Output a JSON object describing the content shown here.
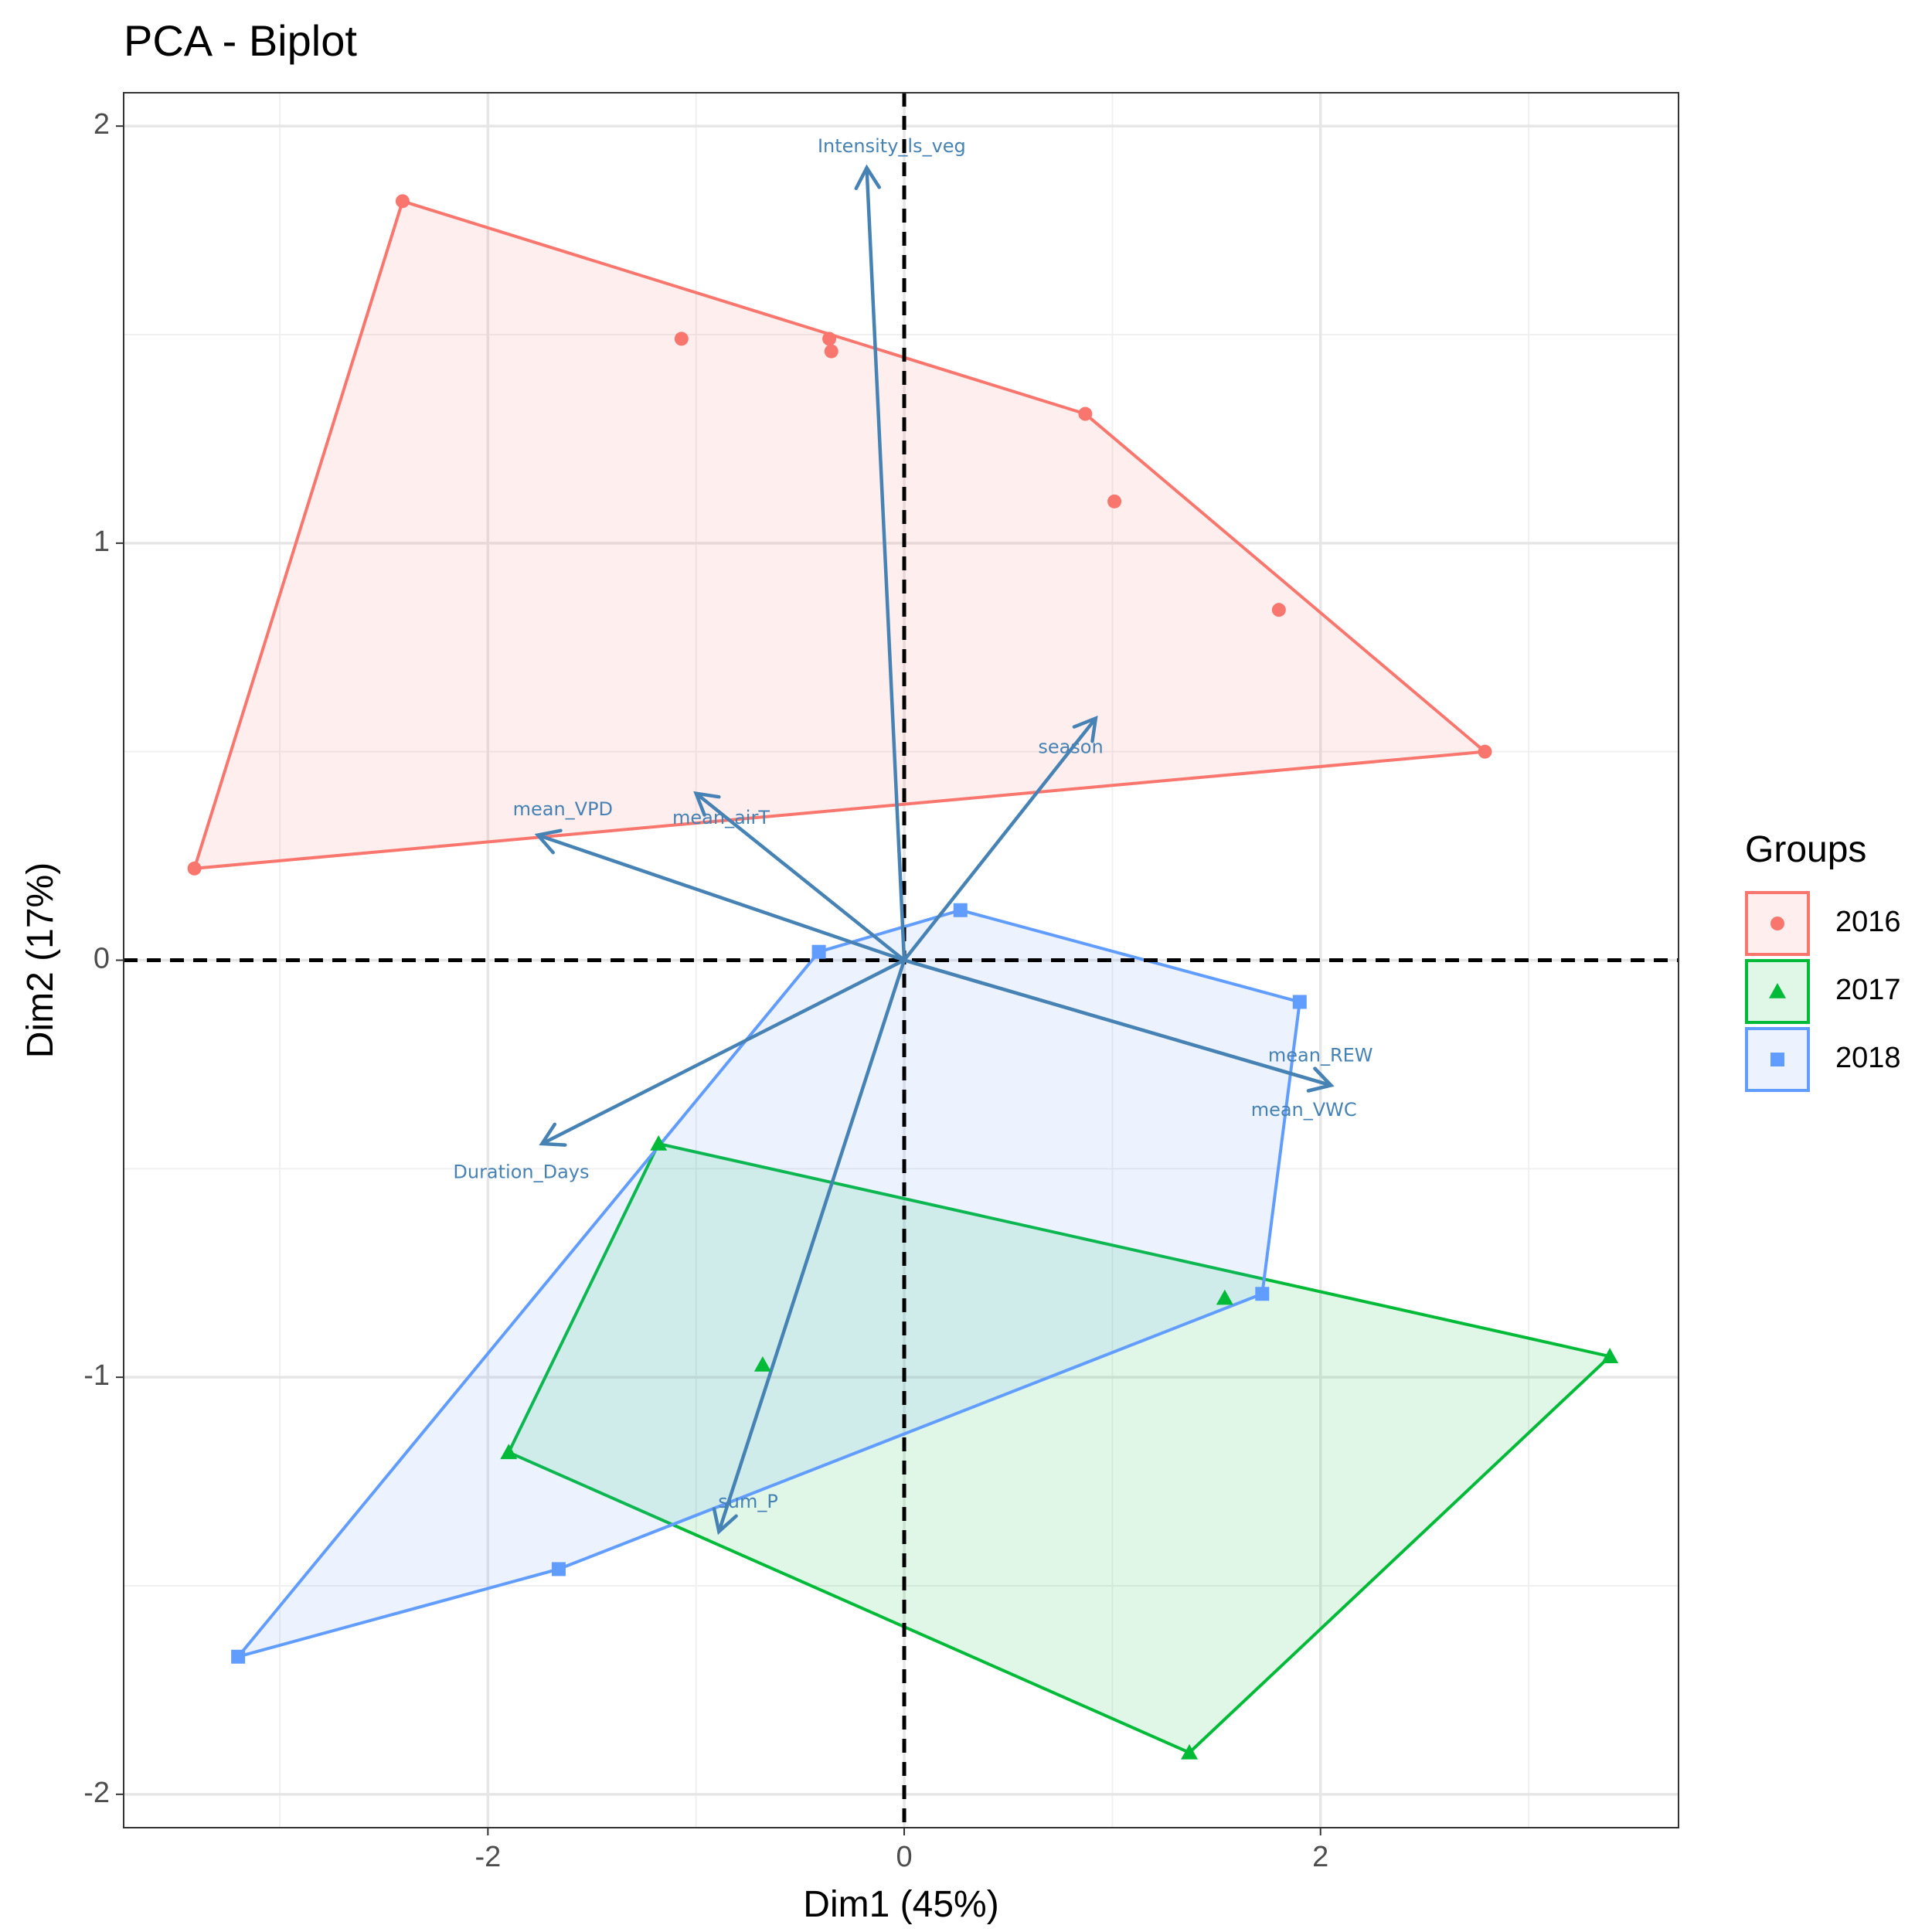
{
  "chart_data": {
    "type": "scatter",
    "title": "PCA - Biplot",
    "xlabel": "Dim1 (45%)",
    "ylabel": "Dim2 (17%)",
    "xlim": [
      -3.75,
      3.72
    ],
    "ylim": [
      -2.08,
      2.08
    ],
    "x_ticks": [
      -2,
      0,
      2
    ],
    "x_tick_labels": [
      "-2",
      "0",
      "2"
    ],
    "y_ticks": [
      -2,
      -1,
      0,
      1,
      2
    ],
    "y_tick_labels": [
      "-2",
      "-1",
      "0",
      "1",
      "2"
    ],
    "x_minor_ticks": [
      -3,
      -1,
      1,
      3
    ],
    "y_minor_ticks": [
      -1.5,
      -0.5,
      0.5,
      1.5
    ],
    "grid": true,
    "reference_lines": {
      "x": 0,
      "y": 0,
      "style": "dashed"
    },
    "legend": {
      "title": "Groups",
      "position": "right"
    },
    "series": [
      {
        "name": "2016",
        "color": "#F8766D",
        "shape": "circle",
        "points": [
          {
            "x": -2.41,
            "y": 1.82
          },
          {
            "x": -1.07,
            "y": 1.49
          },
          {
            "x": -0.36,
            "y": 1.49
          },
          {
            "x": -0.35,
            "y": 1.46
          },
          {
            "x": 0.87,
            "y": 1.31
          },
          {
            "x": 1.01,
            "y": 1.1
          },
          {
            "x": 1.8,
            "y": 0.84
          },
          {
            "x": 2.79,
            "y": 0.5
          },
          {
            "x": -3.41,
            "y": 0.22
          }
        ],
        "hull": [
          {
            "x": -2.41,
            "y": 1.82
          },
          {
            "x": 0.87,
            "y": 1.31
          },
          {
            "x": 2.79,
            "y": 0.5
          },
          {
            "x": -3.41,
            "y": 0.22
          }
        ]
      },
      {
        "name": "2017",
        "color": "#00BA38",
        "shape": "triangle",
        "points": [
          {
            "x": -1.18,
            "y": -0.44
          },
          {
            "x": 1.54,
            "y": -0.81
          },
          {
            "x": -0.68,
            "y": -0.97
          },
          {
            "x": 3.39,
            "y": -0.95
          },
          {
            "x": -1.9,
            "y": -1.18
          },
          {
            "x": 1.37,
            "y": -1.9
          }
        ],
        "hull": [
          {
            "x": -1.18,
            "y": -0.44
          },
          {
            "x": 3.39,
            "y": -0.95
          },
          {
            "x": 1.37,
            "y": -1.9
          },
          {
            "x": -1.9,
            "y": -1.18
          }
        ]
      },
      {
        "name": "2018",
        "color": "#619CFF",
        "shape": "square",
        "points": [
          {
            "x": 0.27,
            "y": 0.12
          },
          {
            "x": -0.41,
            "y": 0.02
          },
          {
            "x": 1.9,
            "y": -0.1
          },
          {
            "x": 1.72,
            "y": -0.8
          },
          {
            "x": -1.66,
            "y": -1.46
          },
          {
            "x": -3.2,
            "y": -1.67
          }
        ],
        "hull": [
          {
            "x": 0.27,
            "y": 0.12
          },
          {
            "x": 1.9,
            "y": -0.1
          },
          {
            "x": 1.72,
            "y": -0.8
          },
          {
            "x": -1.66,
            "y": -1.46
          },
          {
            "x": -3.2,
            "y": -1.67
          },
          {
            "x": -0.41,
            "y": 0.02
          }
        ]
      }
    ],
    "variables": {
      "color": "#4682B4",
      "items": [
        {
          "name": "Intensity_ls_veg",
          "x": -0.18,
          "y": 1.9,
          "label_x": -0.06,
          "label_y": 1.95
        },
        {
          "name": "season",
          "x": 0.92,
          "y": 0.58,
          "label_x": 0.8,
          "label_y": 0.51
        },
        {
          "name": "mean_VPD",
          "x": -1.76,
          "y": 0.3,
          "label_x": -1.64,
          "label_y": 0.36
        },
        {
          "name": "mean_airT",
          "x": -1.0,
          "y": 0.4,
          "label_x": -0.88,
          "label_y": 0.34
        },
        {
          "name": "mean_REW",
          "x": 2.05,
          "y": -0.3,
          "label_x": 2.0,
          "label_y": -0.23
        },
        {
          "name": "mean_VWC",
          "x": 2.05,
          "y": -0.3,
          "label_x": 1.92,
          "label_y": -0.36
        },
        {
          "name": "Duration_Days",
          "x": -1.74,
          "y": -0.44,
          "label_x": -1.84,
          "label_y": -0.51
        },
        {
          "name": "sum_P",
          "x": -0.89,
          "y": -1.37,
          "label_x": -0.75,
          "label_y": -1.3
        }
      ]
    }
  }
}
